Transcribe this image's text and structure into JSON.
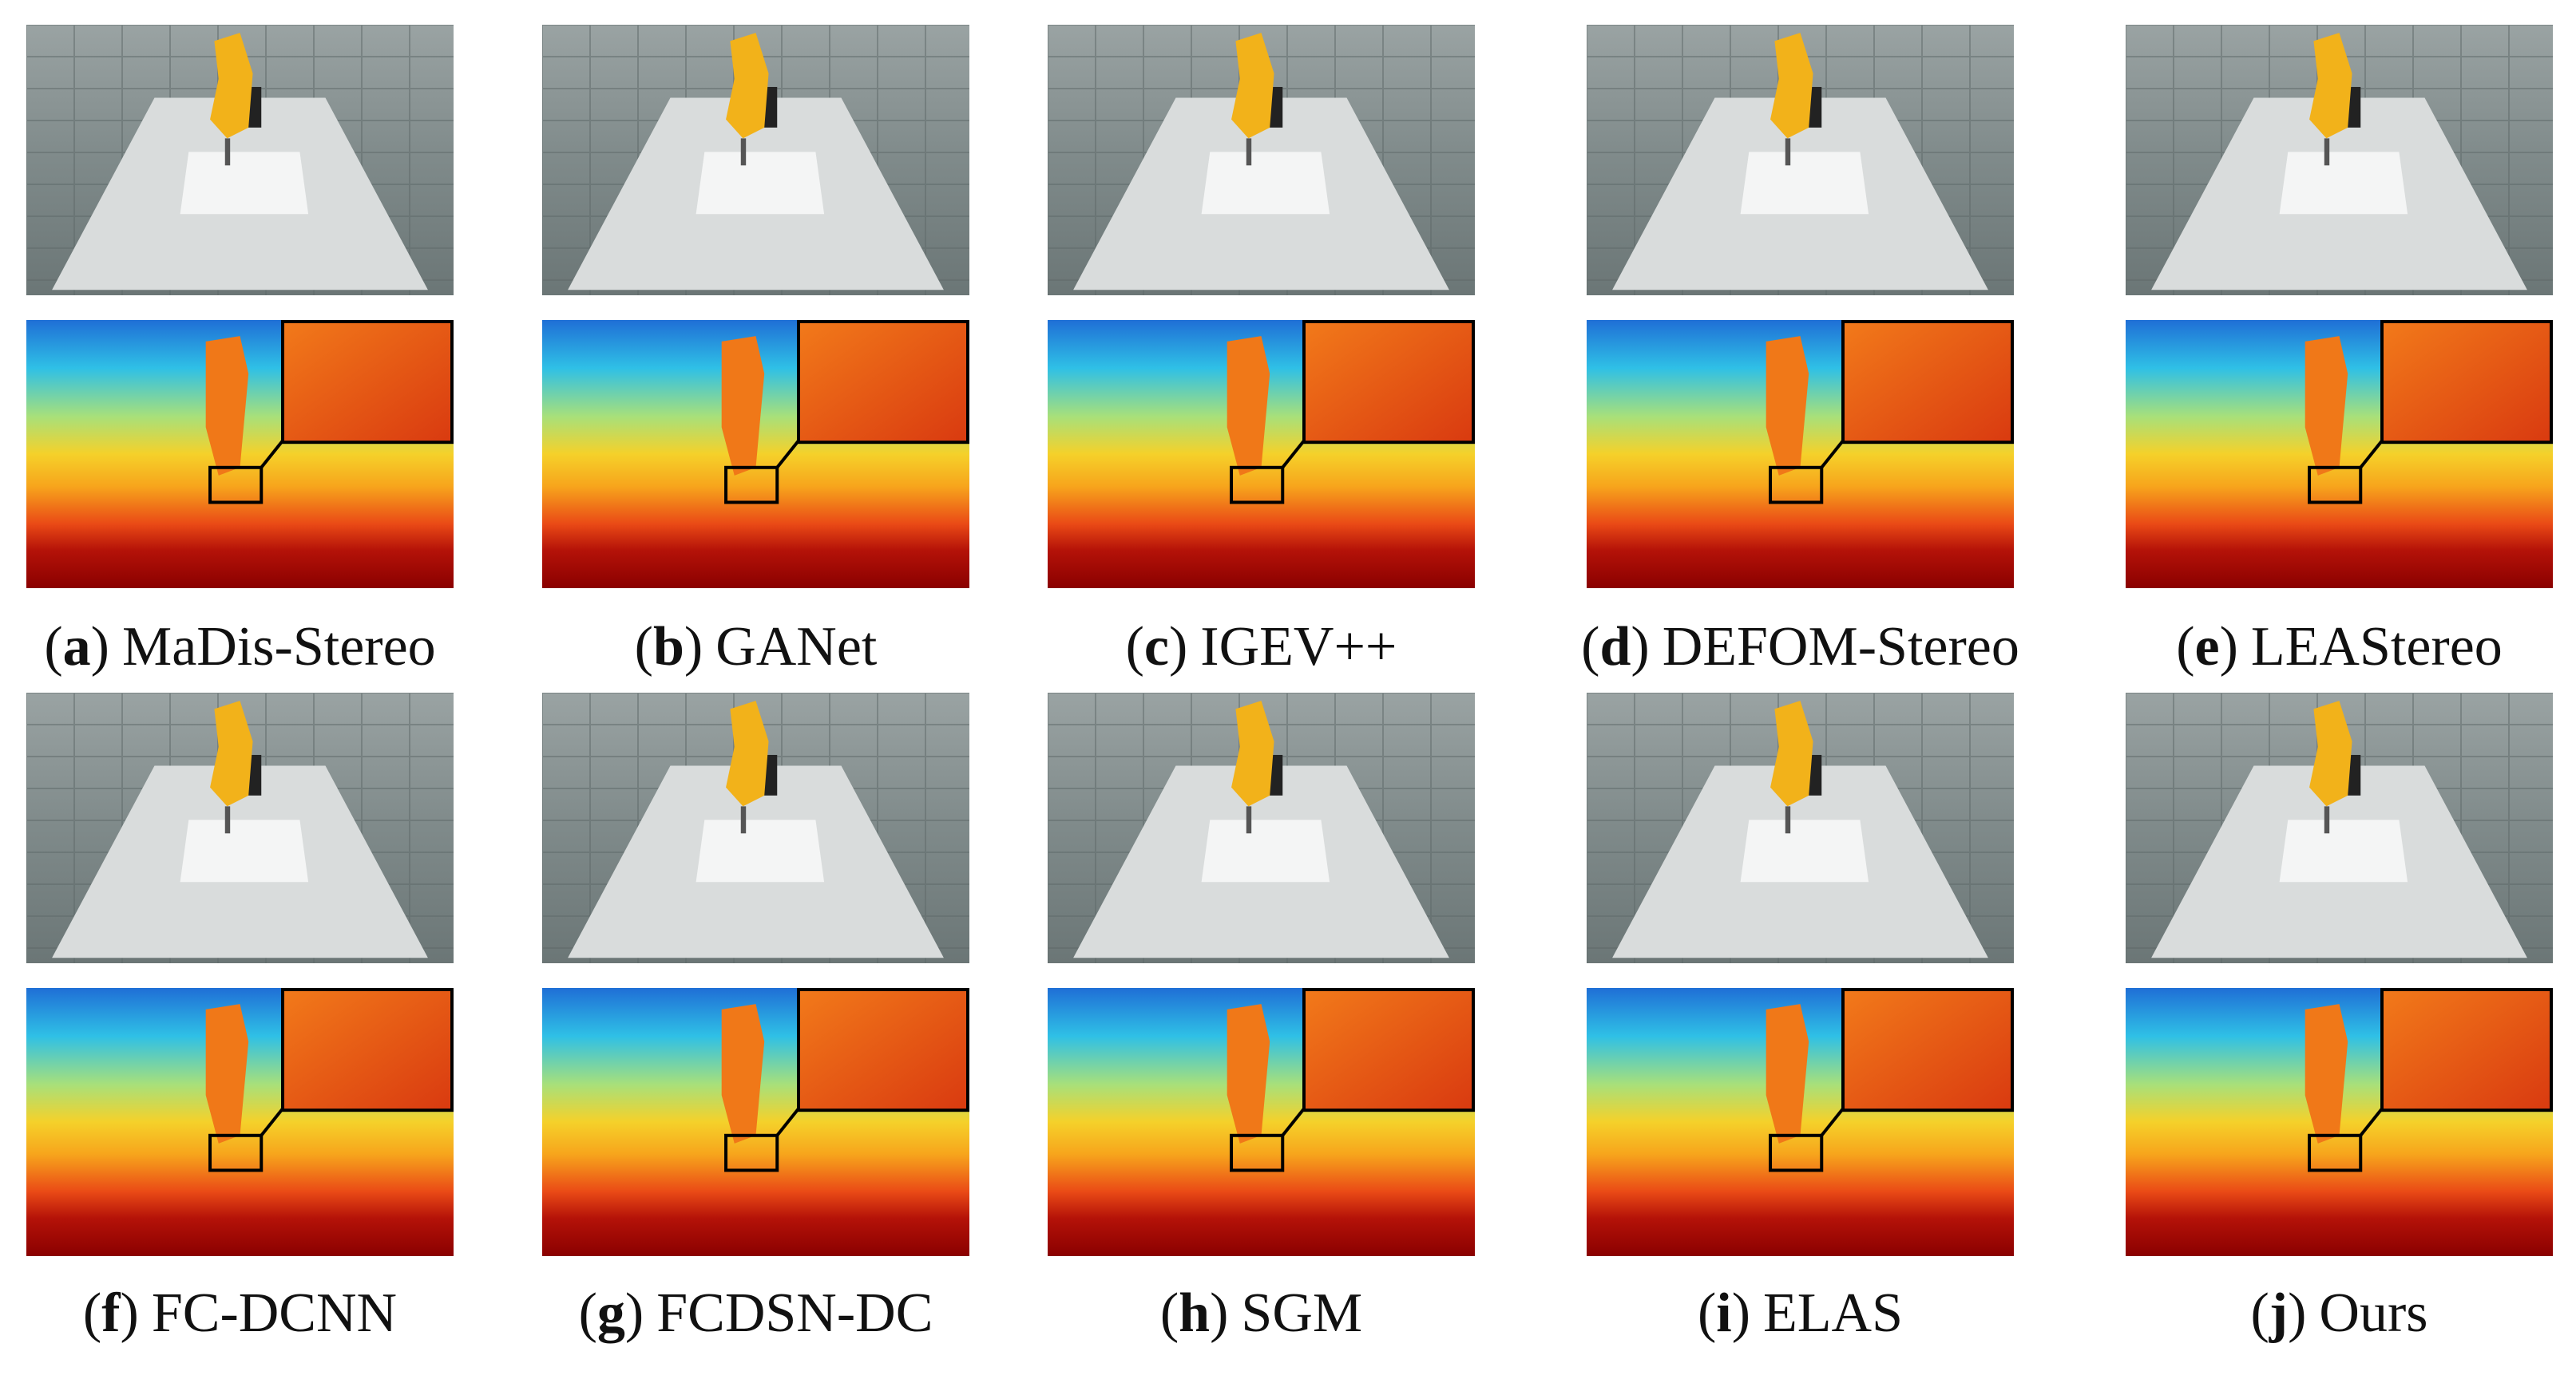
{
  "caption_brackets": [
    "(",
    ")"
  ],
  "panels": [
    {
      "letter": "a",
      "label": "MaDis-Stereo"
    },
    {
      "letter": "b",
      "label": "GANet"
    },
    {
      "letter": "c",
      "label": "IGEV++"
    },
    {
      "letter": "d",
      "label": "DEFOM-Stereo"
    },
    {
      "letter": "e",
      "label": "LEAStereo"
    },
    {
      "letter": "f",
      "label": "FC-DCNN"
    },
    {
      "letter": "g",
      "label": "FCDSN-DC"
    },
    {
      "letter": "h",
      "label": "SGM"
    },
    {
      "letter": "i",
      "label": "ELAS"
    },
    {
      "letter": "j",
      "label": "Ours"
    }
  ]
}
